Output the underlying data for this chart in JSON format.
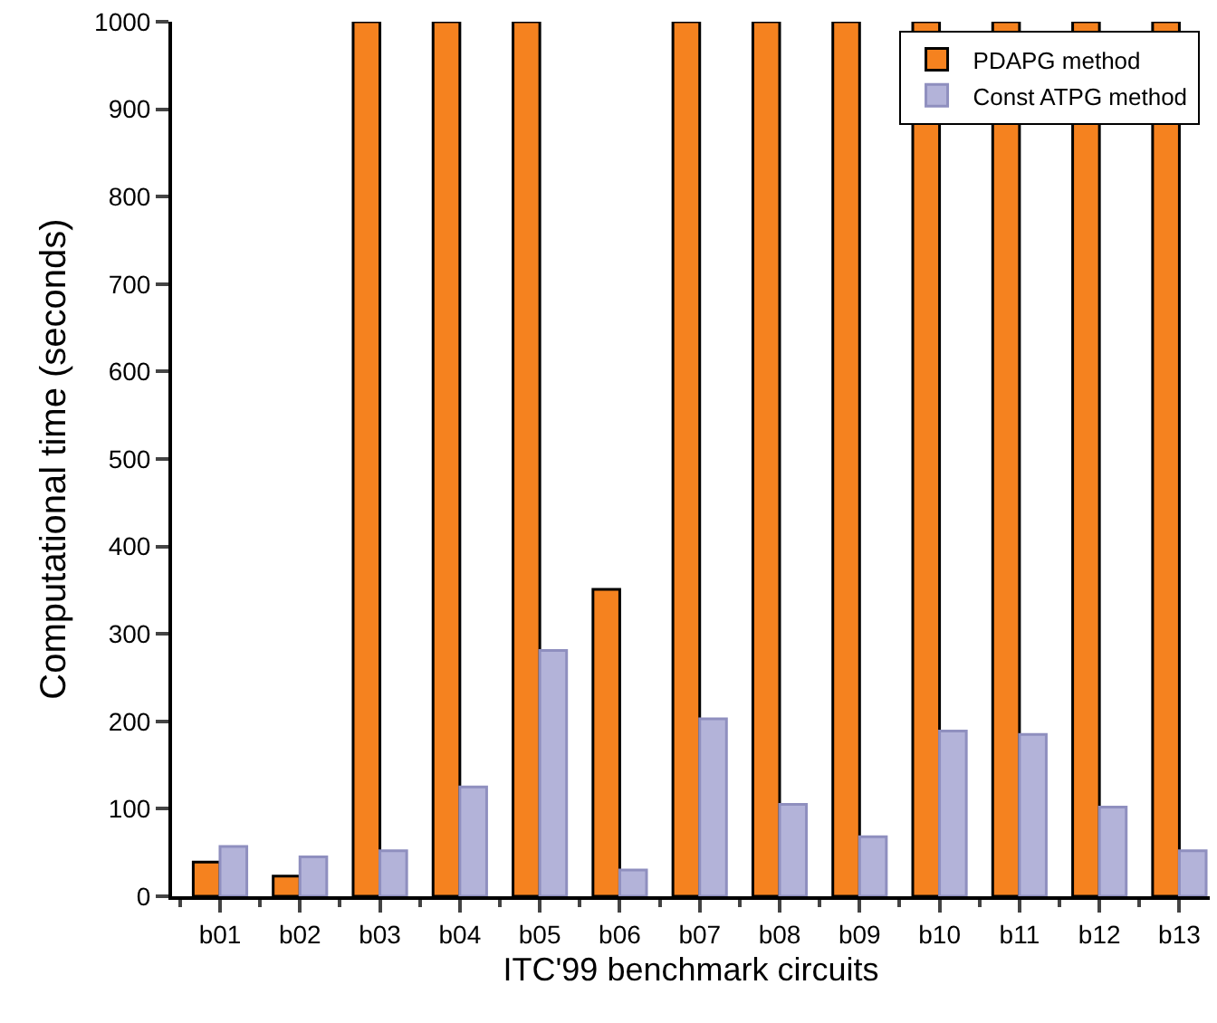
{
  "chart_data": {
    "type": "bar",
    "xlabel": "ITC'99 benchmark circuits",
    "ylabel": "Computational time (seconds)",
    "categories": [
      "b01",
      "b02",
      "b03",
      "b04",
      "b05",
      "b06",
      "b07",
      "b08",
      "b09",
      "b10",
      "b11",
      "b12",
      "b13"
    ],
    "series": [
      {
        "name": "PDAPG method",
        "color": "#f5821f",
        "values": [
          39,
          23,
          1000,
          1000,
          1000,
          351,
          1000,
          1000,
          1000,
          1000,
          1000,
          1000,
          1000
        ]
      },
      {
        "name": "Const ATPG method",
        "color": "#b3b3d9",
        "values": [
          57,
          45,
          52,
          125,
          281,
          30,
          203,
          105,
          68,
          189,
          185,
          102,
          52
        ]
      }
    ],
    "ylim": [
      0,
      1000
    ],
    "yticks": [
      0,
      100,
      200,
      300,
      400,
      500,
      600,
      700,
      800,
      900,
      1000
    ],
    "grid": false,
    "legend": "top right"
  }
}
